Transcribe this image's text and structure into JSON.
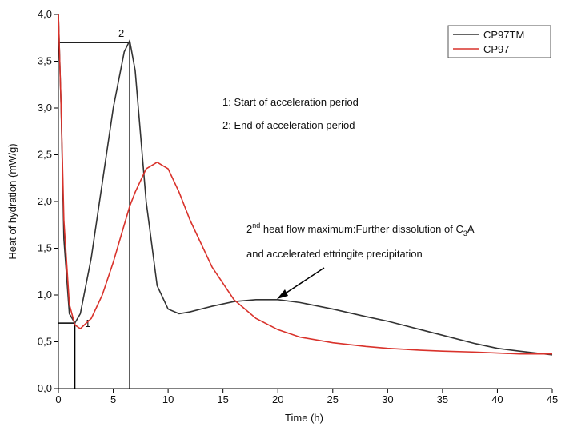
{
  "chart_data": {
    "type": "line",
    "xlabel": "Time (h)",
    "ylabel": "Heat of hydration (mW/g)",
    "x": [
      0,
      0.25,
      0.5,
      1,
      1.5,
      2,
      3,
      4,
      5,
      6,
      6.5,
      7,
      8,
      9,
      10,
      11,
      12,
      14,
      16,
      18,
      20,
      22,
      25,
      28,
      30,
      33,
      35,
      38,
      40,
      42,
      45
    ],
    "series": [
      {
        "name": "CP97TM",
        "color": "#333333",
        "values": [
          4.0,
          3.0,
          1.6,
          0.8,
          0.7,
          0.8,
          1.4,
          2.2,
          3.0,
          3.6,
          3.72,
          3.4,
          2.0,
          1.1,
          0.85,
          0.8,
          0.82,
          0.88,
          0.93,
          0.95,
          0.95,
          0.92,
          0.85,
          0.77,
          0.72,
          0.63,
          0.57,
          0.48,
          0.43,
          0.4,
          0.36
        ]
      },
      {
        "name": "CP97",
        "color": "#d9322b",
        "values": [
          4.0,
          3.0,
          1.8,
          0.9,
          0.68,
          0.64,
          0.75,
          1.0,
          1.35,
          1.75,
          1.95,
          2.1,
          2.35,
          2.42,
          2.35,
          2.1,
          1.8,
          1.3,
          0.95,
          0.75,
          0.63,
          0.55,
          0.49,
          0.45,
          0.43,
          0.41,
          0.4,
          0.39,
          0.38,
          0.37,
          0.37
        ]
      }
    ],
    "markers": [
      {
        "x": 6.5,
        "y": 3.7
      },
      {
        "x": 1.5,
        "y": 0.7
      }
    ],
    "annotations": {
      "peak_label": "2",
      "min_label": "1",
      "note1": "1: Start of acceleration period",
      "note2": "2: End of acceleration period",
      "heat_max": [
        "2",
        "nd",
        " heat flow maximum:Further dissolution of C",
        "3",
        "A"
      ],
      "heat_max_line2": "and accelerated ettringite precipitation"
    },
    "xlim": [
      0,
      45
    ],
    "xticks": [
      0,
      5,
      10,
      15,
      20,
      25,
      30,
      35,
      40,
      45
    ],
    "ylim": [
      0,
      4
    ],
    "yticks": [
      {
        "value": 0,
        "label": "0,0"
      },
      {
        "value": 0.5,
        "label": "0,5"
      },
      {
        "value": 1,
        "label": "1,0"
      },
      {
        "value": 1.5,
        "label": "1,5"
      },
      {
        "value": 2,
        "label": "2,0"
      },
      {
        "value": 2.5,
        "label": "2,5"
      },
      {
        "value": 3,
        "label": "3,0"
      },
      {
        "value": 3.5,
        "label": "3,5"
      },
      {
        "value": 4,
        "label": "4,0"
      }
    ],
    "legend": "top-right"
  }
}
